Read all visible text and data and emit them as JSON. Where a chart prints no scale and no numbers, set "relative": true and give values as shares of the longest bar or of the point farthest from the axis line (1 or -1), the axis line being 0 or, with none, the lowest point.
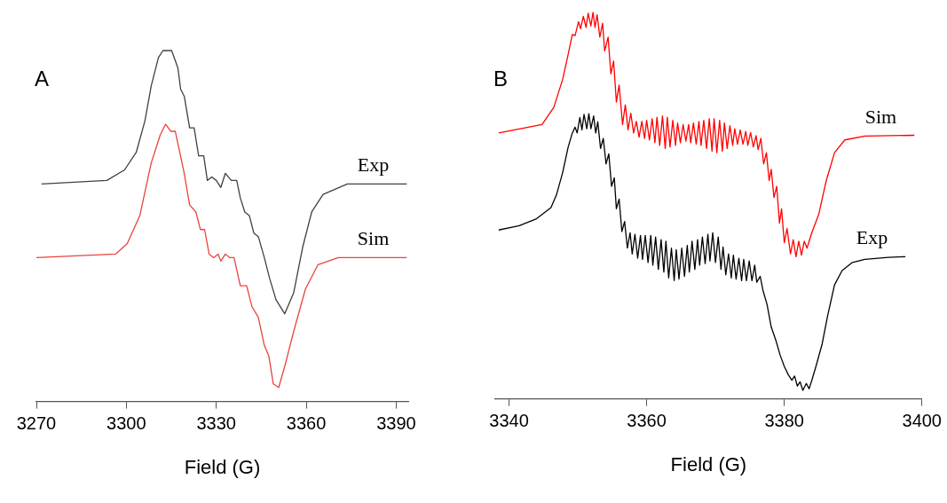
{
  "chart_data": [
    {
      "type": "line",
      "title": "A",
      "xlabel": "Field (G)",
      "relative": true,
      "tick_labels": "x",
      "marker": "none",
      "xlim": [
        3270,
        3394
      ],
      "xticks": [
        3270,
        3300,
        3330,
        3360,
        3390
      ],
      "series": [
        {
          "name": "Exp",
          "color": "#404040",
          "x": [
            3271.7,
            3293.5,
            3299.4,
            3303.3,
            3306.2,
            3308.3,
            3310.7,
            3312.2,
            3315.1,
            3317.2,
            3318.1,
            3319.3,
            3321.1,
            3322.6,
            3324.1,
            3325.8,
            3327.0,
            3328.5,
            3330.0,
            3331.5,
            3333.0,
            3335.0,
            3336.8,
            3338.0,
            3339.5,
            3341.0,
            3342.5,
            3344.0,
            3346.0,
            3347.8,
            3349.9,
            3352.8,
            3355.8,
            3358.8,
            3361.8,
            3365.6,
            3373.7,
            3393.5
          ],
          "values": [
            0.62,
            0.63,
            0.66,
            0.71,
            0.8,
            0.9,
            0.98,
            1.0,
            1.0,
            0.95,
            0.89,
            0.87,
            0.78,
            0.78,
            0.7,
            0.7,
            0.63,
            0.64,
            0.63,
            0.61,
            0.65,
            0.63,
            0.63,
            0.58,
            0.54,
            0.53,
            0.48,
            0.47,
            0.41,
            0.35,
            0.29,
            0.25,
            0.31,
            0.44,
            0.54,
            0.59,
            0.62,
            0.62
          ]
        },
        {
          "name": "Sim",
          "color": "#e8433e",
          "x": [
            3270,
            3296.4,
            3300.3,
            3304.5,
            3308.3,
            3311.3,
            3313.1,
            3314.8,
            3316.3,
            3317.8,
            3319.3,
            3321.1,
            3323.2,
            3324.7,
            3326.1,
            3327.6,
            3329.1,
            3330.6,
            3331.5,
            3333.0,
            3334.5,
            3335.9,
            3338.0,
            3340.1,
            3341.9,
            3344.0,
            3346.0,
            3347.5,
            3349.0,
            3350.8,
            3352.8,
            3355.8,
            3359.7,
            3363.9,
            3370.7,
            3393.5
          ],
          "values": [
            0.41,
            0.42,
            0.45,
            0.53,
            0.68,
            0.76,
            0.79,
            0.77,
            0.77,
            0.71,
            0.65,
            0.56,
            0.54,
            0.49,
            0.49,
            0.42,
            0.41,
            0.42,
            0.4,
            0.42,
            0.41,
            0.41,
            0.33,
            0.33,
            0.27,
            0.24,
            0.16,
            0.13,
            0.05,
            0.04,
            0.1,
            0.2,
            0.32,
            0.39,
            0.41,
            0.41
          ]
        }
      ]
    },
    {
      "type": "line",
      "title": "B",
      "xlabel": "Field (G)",
      "relative": true,
      "tick_labels": "x",
      "marker": "none",
      "xlim": [
        3338,
        3400
      ],
      "xticks": [
        3340,
        3360,
        3380,
        3400
      ],
      "series": [
        {
          "name": "Sim",
          "color": "#ff0000",
          "x": [
            3338.5,
            3344.8,
            3346.5,
            3347.8,
            3348.6,
            3349.2,
            3349.6,
            3350.1,
            3350.4,
            3350.8,
            3351.2,
            3351.5,
            3351.9,
            3352.2,
            3352.5,
            3352.8,
            3353.2,
            3353.6,
            3353.9,
            3354.4,
            3354.8,
            3355.2,
            3355.6,
            3356.0,
            3356.5,
            3356.9,
            3357.3,
            3357.7,
            3358.1,
            3358.5,
            3358.9,
            3359.3,
            3359.7,
            3360.0,
            3360.4,
            3360.8,
            3361.2,
            3361.5,
            3361.9,
            3362.3,
            3362.7,
            3363.0,
            3363.4,
            3363.8,
            3364.2,
            3364.5,
            3364.9,
            3365.3,
            3365.7,
            3366.1,
            3366.4,
            3366.8,
            3367.2,
            3367.6,
            3367.9,
            3368.3,
            3368.7,
            3369.1,
            3369.5,
            3369.8,
            3370.2,
            3370.6,
            3371.0,
            3371.3,
            3371.7,
            3372.1,
            3372.5,
            3372.8,
            3373.2,
            3373.6,
            3374.0,
            3374.4,
            3374.7,
            3375.1,
            3375.5,
            3375.9,
            3376.2,
            3376.6,
            3377.0,
            3377.4,
            3377.8,
            3378.1,
            3378.5,
            3378.9,
            3379.3,
            3379.6,
            3380.0,
            3380.4,
            3380.9,
            3381.3,
            3381.7,
            3382.1,
            3382.5,
            3382.9,
            3383.3,
            3384.0,
            3385.0,
            3386.1,
            3387.3,
            3388.8,
            3391.7,
            3398.9
          ],
          "values": [
            0.688,
            0.71,
            0.754,
            0.827,
            0.892,
            0.943,
            0.94,
            0.976,
            0.958,
            0.99,
            0.961,
            0.998,
            0.965,
            1.0,
            0.961,
            0.994,
            0.936,
            0.972,
            0.9,
            0.936,
            0.841,
            0.874,
            0.768,
            0.812,
            0.71,
            0.761,
            0.696,
            0.739,
            0.688,
            0.718,
            0.677,
            0.718,
            0.674,
            0.721,
            0.67,
            0.725,
            0.663,
            0.729,
            0.656,
            0.732,
            0.648,
            0.729,
            0.652,
            0.721,
            0.656,
            0.714,
            0.663,
            0.71,
            0.667,
            0.71,
            0.663,
            0.714,
            0.659,
            0.718,
            0.656,
            0.721,
            0.648,
            0.725,
            0.641,
            0.725,
            0.637,
            0.721,
            0.641,
            0.714,
            0.648,
            0.707,
            0.656,
            0.699,
            0.659,
            0.696,
            0.659,
            0.692,
            0.656,
            0.689,
            0.652,
            0.681,
            0.645,
            0.674,
            0.608,
            0.637,
            0.565,
            0.594,
            0.521,
            0.55,
            0.455,
            0.492,
            0.404,
            0.441,
            0.375,
            0.412,
            0.368,
            0.408,
            0.372,
            0.408,
            0.39,
            0.43,
            0.477,
            0.565,
            0.637,
            0.67,
            0.68,
            0.682
          ]
        },
        {
          "name": "Exp",
          "color": "#000000",
          "x": [
            3338.5,
            3341.5,
            3344.0,
            3346.1,
            3346.9,
            3347.8,
            3348.6,
            3349.2,
            3349.6,
            3349.9,
            3350.3,
            3350.6,
            3350.9,
            3351.3,
            3351.6,
            3351.9,
            3352.3,
            3352.6,
            3352.9,
            3353.3,
            3353.7,
            3354.1,
            3354.5,
            3354.9,
            3355.3,
            3355.6,
            3356.0,
            3356.4,
            3356.8,
            3357.2,
            3357.6,
            3357.9,
            3358.3,
            3358.7,
            3359.1,
            3359.4,
            3359.8,
            3360.2,
            3360.6,
            3360.9,
            3361.3,
            3361.7,
            3362.1,
            3362.5,
            3362.8,
            3363.2,
            3363.6,
            3364.0,
            3364.3,
            3364.7,
            3365.1,
            3365.5,
            3365.9,
            3366.2,
            3366.6,
            3367.0,
            3367.4,
            3367.7,
            3368.1,
            3368.5,
            3368.9,
            3369.2,
            3369.6,
            3370.0,
            3370.4,
            3370.8,
            3371.1,
            3371.5,
            3371.9,
            3372.3,
            3372.6,
            3373.0,
            3373.4,
            3373.8,
            3374.1,
            3374.5,
            3374.9,
            3375.3,
            3375.7,
            3376.0,
            3376.5,
            3376.9,
            3377.5,
            3378.1,
            3378.8,
            3379.4,
            3380.0,
            3380.6,
            3381.1,
            3381.5,
            3381.9,
            3382.3,
            3382.7,
            3383.2,
            3383.6,
            3384.0,
            3384.6,
            3385.5,
            3386.3,
            3387.3,
            3388.4,
            3389.9,
            3391.7,
            3395.1,
            3397.6
          ],
          "values": [
            0.437,
            0.448,
            0.466,
            0.495,
            0.528,
            0.586,
            0.652,
            0.688,
            0.703,
            0.688,
            0.728,
            0.696,
            0.736,
            0.699,
            0.738,
            0.699,
            0.732,
            0.688,
            0.717,
            0.648,
            0.674,
            0.608,
            0.634,
            0.55,
            0.572,
            0.492,
            0.517,
            0.433,
            0.459,
            0.39,
            0.43,
            0.375,
            0.426,
            0.364,
            0.423,
            0.361,
            0.423,
            0.353,
            0.423,
            0.346,
            0.419,
            0.335,
            0.412,
            0.328,
            0.408,
            0.313,
            0.39,
            0.306,
            0.386,
            0.31,
            0.39,
            0.317,
            0.397,
            0.328,
            0.408,
            0.335,
            0.412,
            0.346,
            0.419,
            0.35,
            0.426,
            0.357,
            0.43,
            0.353,
            0.419,
            0.335,
            0.393,
            0.321,
            0.375,
            0.313,
            0.372,
            0.31,
            0.364,
            0.306,
            0.361,
            0.306,
            0.357,
            0.306,
            0.346,
            0.302,
            0.317,
            0.281,
            0.244,
            0.186,
            0.15,
            0.113,
            0.084,
            0.062,
            0.048,
            0.059,
            0.033,
            0.044,
            0.022,
            0.04,
            0.026,
            0.048,
            0.084,
            0.142,
            0.215,
            0.295,
            0.332,
            0.353,
            0.361,
            0.366,
            0.368
          ]
        }
      ]
    }
  ]
}
